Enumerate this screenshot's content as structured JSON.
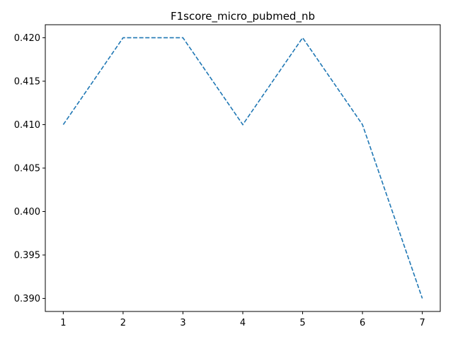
{
  "chart_data": {
    "type": "line",
    "title": "F1score_micro_pubmed_nb",
    "xlabel": "",
    "ylabel": "",
    "x": [
      1,
      2,
      3,
      4,
      5,
      6,
      7
    ],
    "series": [
      {
        "values": [
          0.41,
          0.42,
          0.42,
          0.41,
          0.42,
          0.41,
          0.39
        ],
        "color": "#1f77b4",
        "line_style": "dashed"
      }
    ],
    "xlim": [
      0.7,
      7.3
    ],
    "ylim": [
      0.3885,
      0.4215
    ],
    "x_ticks": [
      1,
      2,
      3,
      4,
      5,
      6,
      7
    ],
    "x_tick_labels": [
      "1",
      "2",
      "3",
      "4",
      "5",
      "6",
      "7"
    ],
    "y_ticks": [
      0.39,
      0.395,
      0.4,
      0.405,
      0.41,
      0.415,
      0.42
    ],
    "y_tick_labels": [
      "0.390",
      "0.395",
      "0.400",
      "0.405",
      "0.410",
      "0.415",
      "0.420"
    ],
    "grid": false,
    "legend": false
  }
}
